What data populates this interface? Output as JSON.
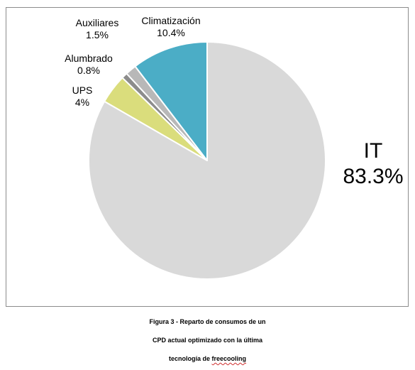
{
  "chart_data": {
    "type": "pie",
    "title": "",
    "slices": [
      {
        "name": "IT",
        "value": 83.3,
        "value_label": "83.3%",
        "color": "#d9d9d9"
      },
      {
        "name": "UPS",
        "value": 4,
        "value_label": "4%",
        "color": "#dadd7c"
      },
      {
        "name": "Alumbrado",
        "value": 0.8,
        "value_label": "0.8%",
        "color": "#8c8c8c"
      },
      {
        "name": "Auxiliares",
        "value": 1.5,
        "value_label": "1.5%",
        "color": "#b8b8b8"
      },
      {
        "name": "Climatización",
        "value": 10.4,
        "value_label": "10.4%",
        "color": "#4badc6"
      }
    ],
    "start_angle_deg": 0,
    "direction": "clockwise",
    "slice_border_color": "#ffffff",
    "legend": "none"
  },
  "caption": {
    "line1": "Figura 3 - Reparto de consumos de un",
    "line2": "CPD actual optimizado con la última",
    "line3_prefix": "tecnología de ",
    "line3_word": "freecooling"
  }
}
